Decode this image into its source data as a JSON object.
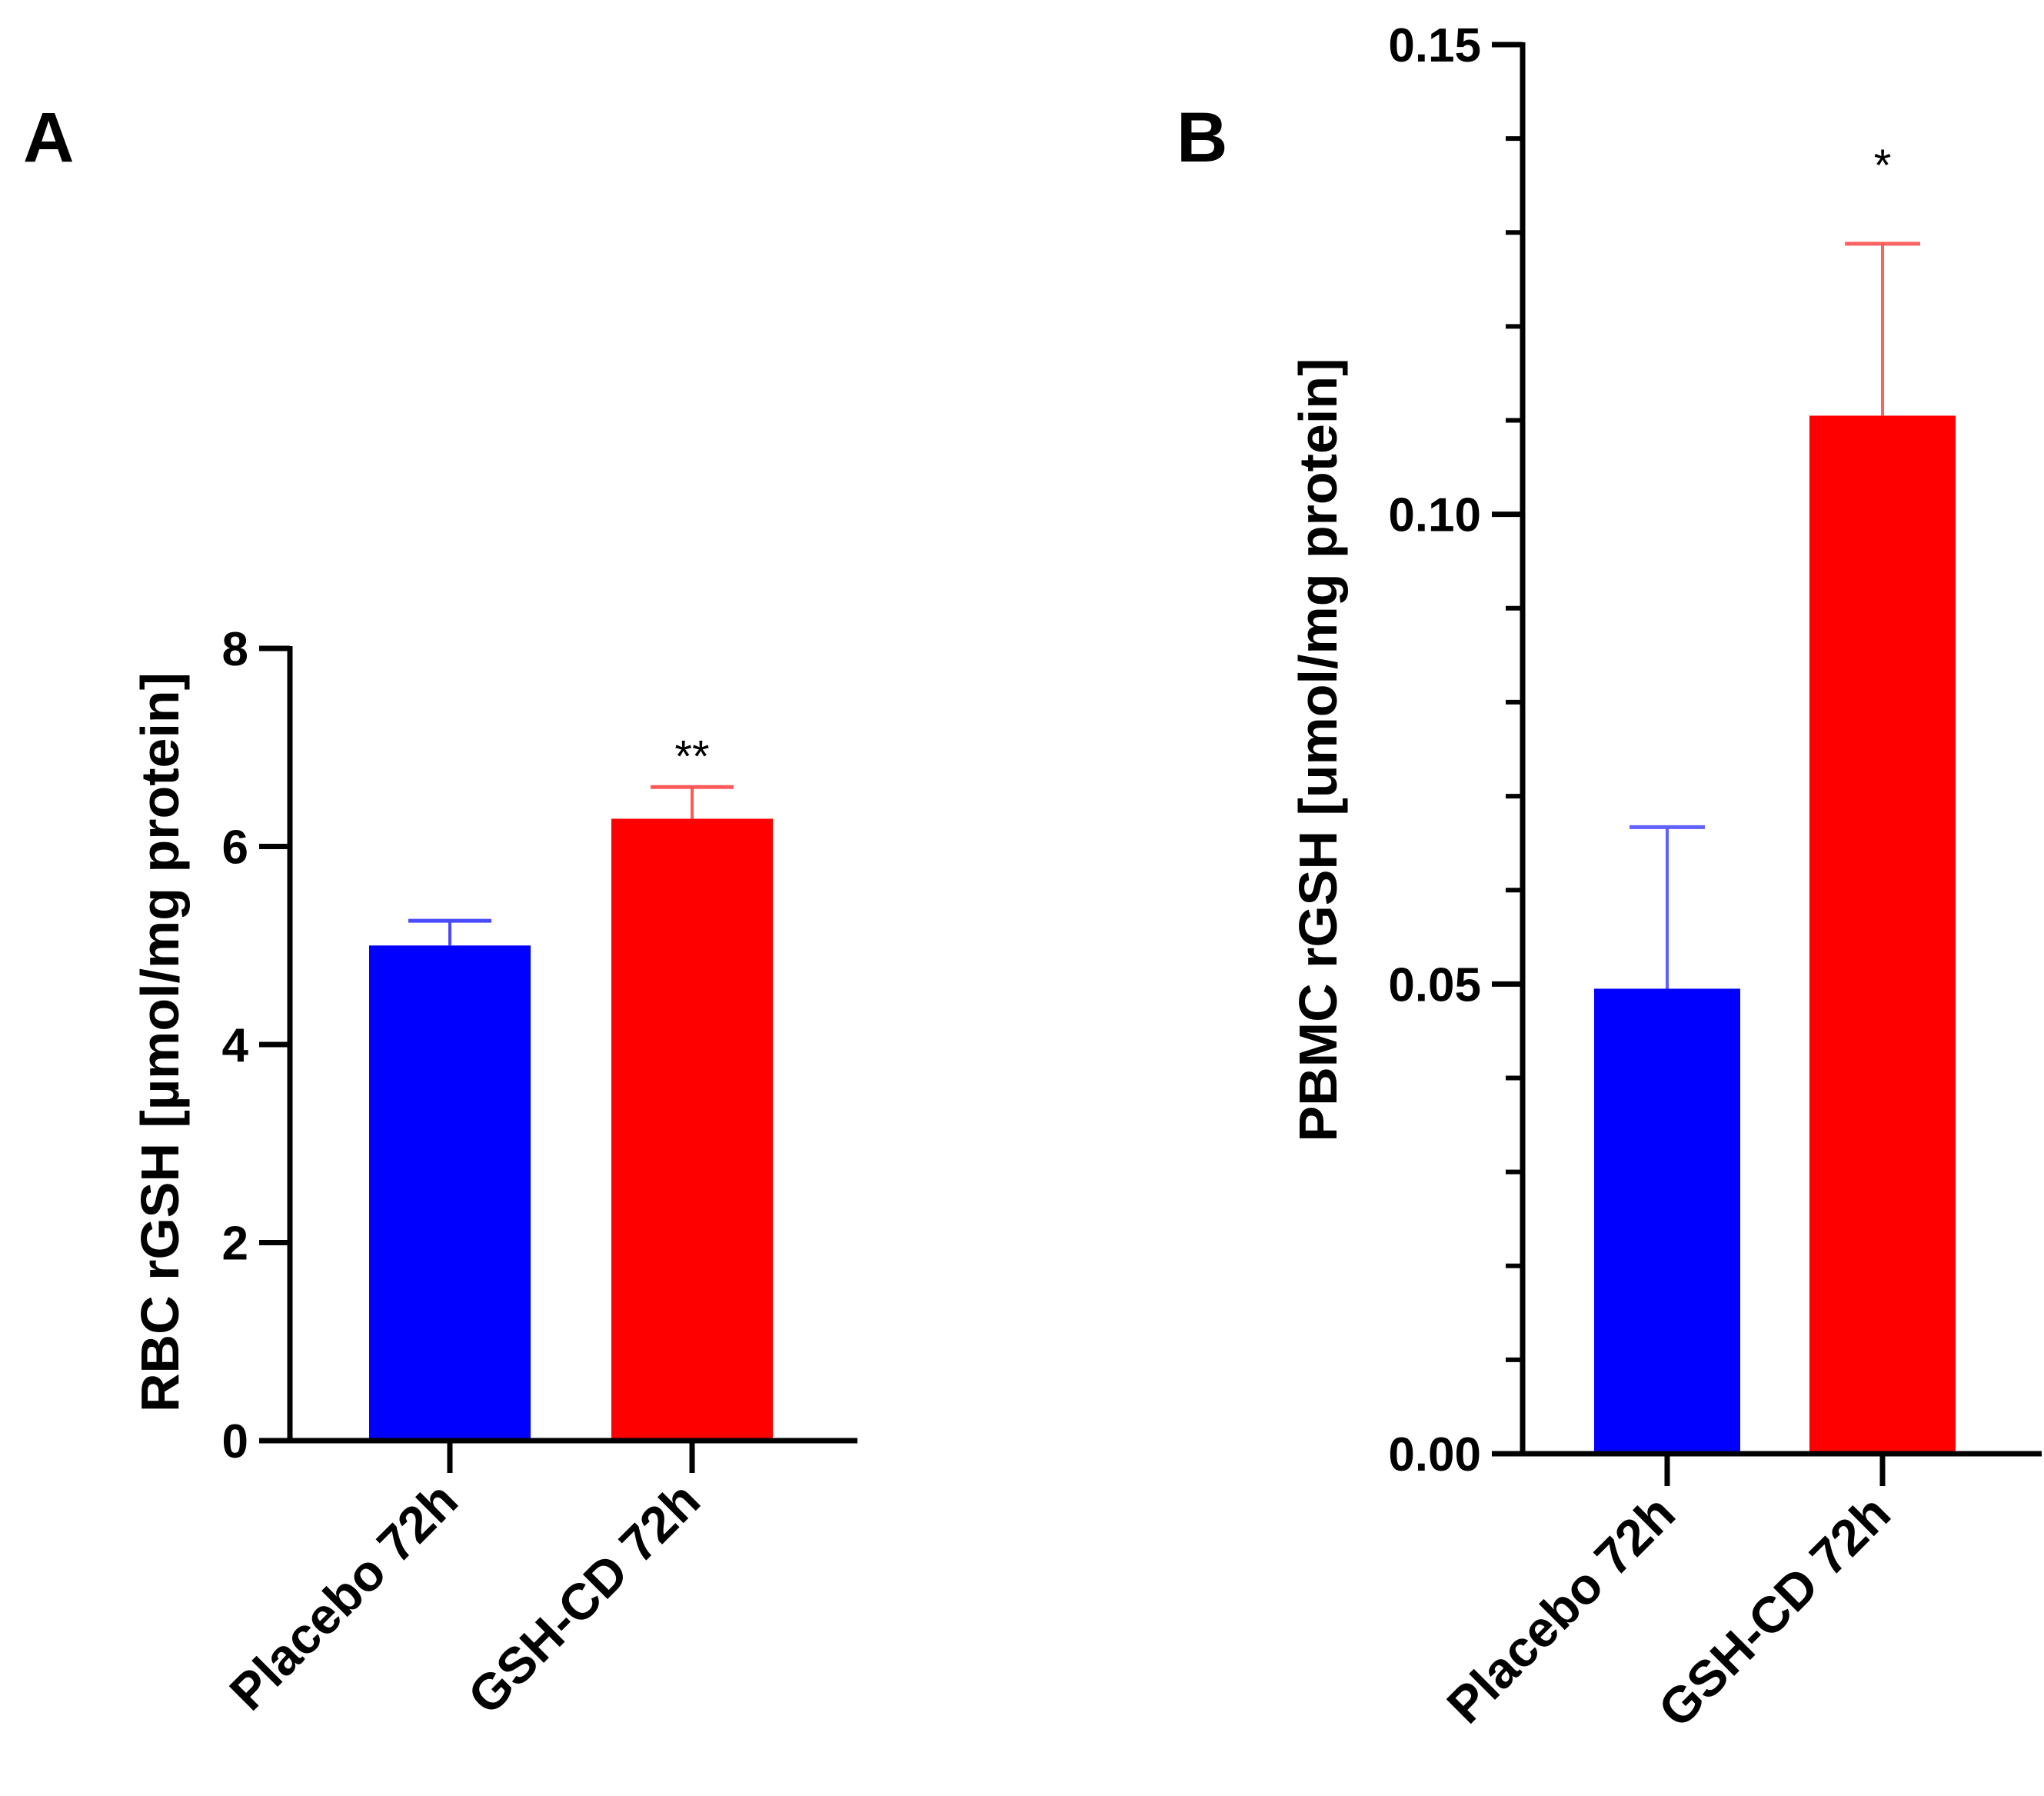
{
  "chart_data": [
    {
      "type": "bar",
      "panel": "A",
      "ylabel": "RBC rGSH [µmol/mg protein]",
      "ylim": [
        0,
        8
      ],
      "yticks": [
        "0",
        "2",
        "4",
        "6",
        "8"
      ],
      "categories": [
        "Placebo 72h",
        "GSH-CD 72h"
      ],
      "values": [
        5.0,
        6.28
      ],
      "errors": [
        0.25,
        0.32
      ],
      "significance": [
        "",
        "**"
      ],
      "colors": [
        "#0000ff",
        "#ff0000"
      ],
      "error_colors": [
        "#4a4aff",
        "#ff5a5a"
      ]
    },
    {
      "type": "bar",
      "panel": "B",
      "ylabel": "PBMC rGSH [umol/mg protein]",
      "ylim": [
        0,
        0.15
      ],
      "yticks": [
        "0.00",
        "0.05",
        "0.10",
        "0.15"
      ],
      "categories": [
        "Placebo 72h",
        "GSH-CD 72h"
      ],
      "values": [
        0.0495,
        0.1105
      ],
      "errors": [
        0.0172,
        0.0183
      ],
      "significance": [
        "",
        "*"
      ],
      "colors": [
        "#0000ff",
        "#ff0000"
      ],
      "error_colors": [
        "#6060ff",
        "#ff6060"
      ]
    }
  ]
}
